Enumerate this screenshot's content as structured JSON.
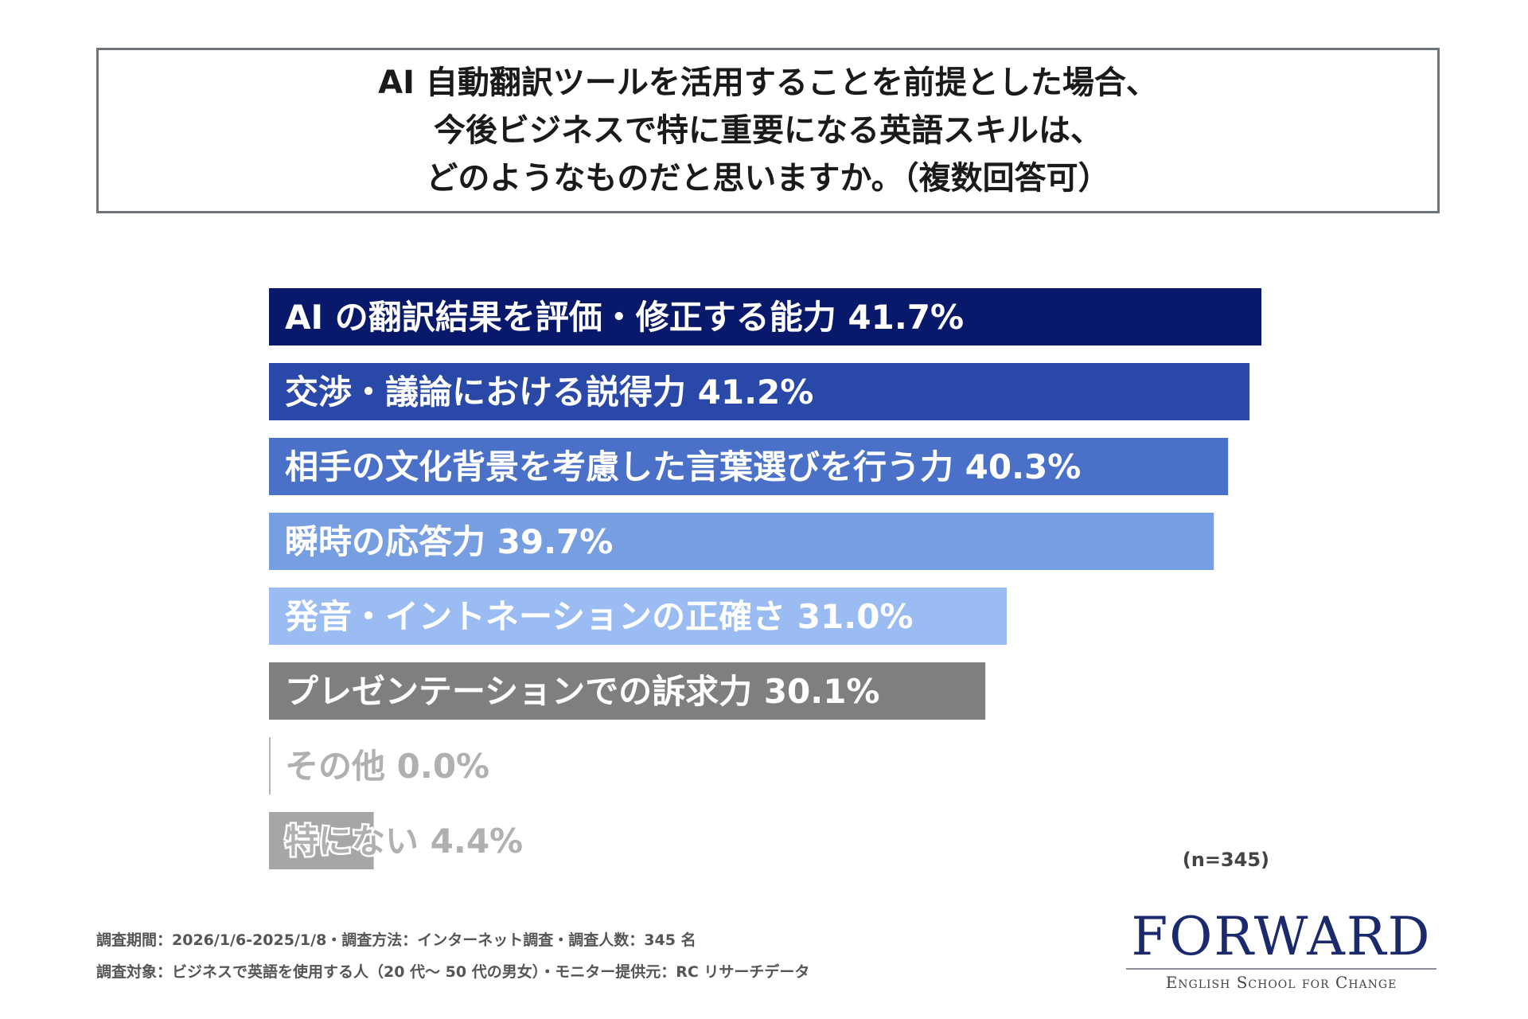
{
  "title": {
    "lines": [
      "AI 自動翻訳ツールを活用することを前提とした場合、",
      "今後ビジネスで特に重要になる英語スキルは、",
      "どのようなものだと思いますか。（複数回答可）"
    ]
  },
  "chart_data": {
    "type": "bar",
    "orientation": "horizontal",
    "categories": [
      "AI の翻訳結果を評価・修正する能力",
      "交渉・議論における説得力",
      "相手の文化背景を考慮した言葉選びを行う力",
      "瞬時の応答力",
      "発音・イントネーションの正確さ",
      "プレゼンテーションでの訴求力",
      "その他",
      "特にない"
    ],
    "values": [
      41.7,
      41.2,
      40.3,
      39.7,
      31.0,
      30.1,
      0.0,
      4.4
    ],
    "value_labels": [
      "41.7%",
      "41.2%",
      "40.3%",
      "39.7%",
      "31.0%",
      "30.1%",
      "0.0%",
      "4.4%"
    ],
    "bar_colors": [
      "#08196b",
      "#2a48a8",
      "#4a70c8",
      "#789ee2",
      "#9abcf2",
      "#7f7f7f",
      "#b5b5b5",
      "#a6a6a6"
    ],
    "xlim": [
      0,
      42
    ],
    "grid": false,
    "legend": "none"
  },
  "sample_note": "(n=345)",
  "footnotes": [
    "調査期間：2026/1/6-2025/1/8・調査方法：インターネット調査・調査人数：345 名",
    "調査対象：ビジネスで英語を使用する人（20 代～ 50 代の男女）・モニター提供元：RC リサーチデータ"
  ],
  "logo": {
    "name": "FORWARD",
    "tagline": "English School for Change"
  }
}
